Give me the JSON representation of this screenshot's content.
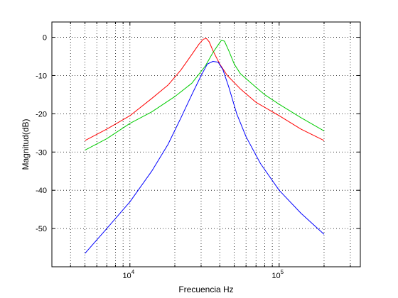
{
  "chart_data": {
    "type": "line",
    "title": "",
    "xlabel": "Frecuencia Hz",
    "ylabel": "Magnitud(dB)",
    "x_scale": "log",
    "xlim": [
      3000,
      350000
    ],
    "ylim": [
      -60,
      4
    ],
    "x_ticks": [
      {
        "value": 10000,
        "base": "10",
        "exp": "4"
      },
      {
        "value": 100000,
        "base": "10",
        "exp": "5"
      }
    ],
    "y_ticks": [
      0,
      -10,
      -20,
      -30,
      -40,
      -50
    ],
    "y_tick_labels": [
      "0",
      "-10",
      "-20",
      "-30",
      "-40",
      "-50"
    ],
    "grid": true,
    "grid_style": "dotted",
    "legend": "none",
    "series": [
      {
        "color": "#ff0000",
        "x": [
          5000,
          7000,
          10000,
          14000,
          18000,
          22000,
          26000,
          29000,
          31000,
          32500,
          34000,
          36000,
          40000,
          45000,
          55000,
          70000,
          100000,
          140000,
          200000
        ],
        "y": [
          -27,
          -24,
          -20.5,
          -16,
          -12.5,
          -8.5,
          -4.5,
          -1.8,
          -0.5,
          -0.3,
          -1.2,
          -3.5,
          -7,
          -10,
          -13.5,
          -17,
          -20.5,
          -24,
          -27
        ]
      },
      {
        "color": "#00cc00",
        "x": [
          5000,
          7000,
          10000,
          14000,
          20000,
          26000,
          32000,
          36000,
          39000,
          41000,
          43000,
          46000,
          50000,
          55000,
          65000,
          80000,
          100000,
          140000,
          200000
        ],
        "y": [
          -29.5,
          -26.5,
          -22.5,
          -19.5,
          -15.5,
          -12,
          -7.5,
          -4,
          -2,
          -0.8,
          -1,
          -3.5,
          -7,
          -9.5,
          -12,
          -15,
          -17.5,
          -21,
          -24.5
        ]
      },
      {
        "color": "#0000ff",
        "x": [
          5000,
          7000,
          10000,
          14000,
          18000,
          22000,
          26000,
          30000,
          33000,
          36000,
          39000,
          42000,
          46000,
          52000,
          60000,
          75000,
          100000,
          140000,
          200000
        ],
        "y": [
          -56.5,
          -50,
          -43,
          -35,
          -28,
          -21,
          -15,
          -10,
          -7,
          -6.3,
          -6.5,
          -8.5,
          -13,
          -20,
          -26,
          -33,
          -40,
          -46,
          -51.5
        ]
      }
    ]
  }
}
